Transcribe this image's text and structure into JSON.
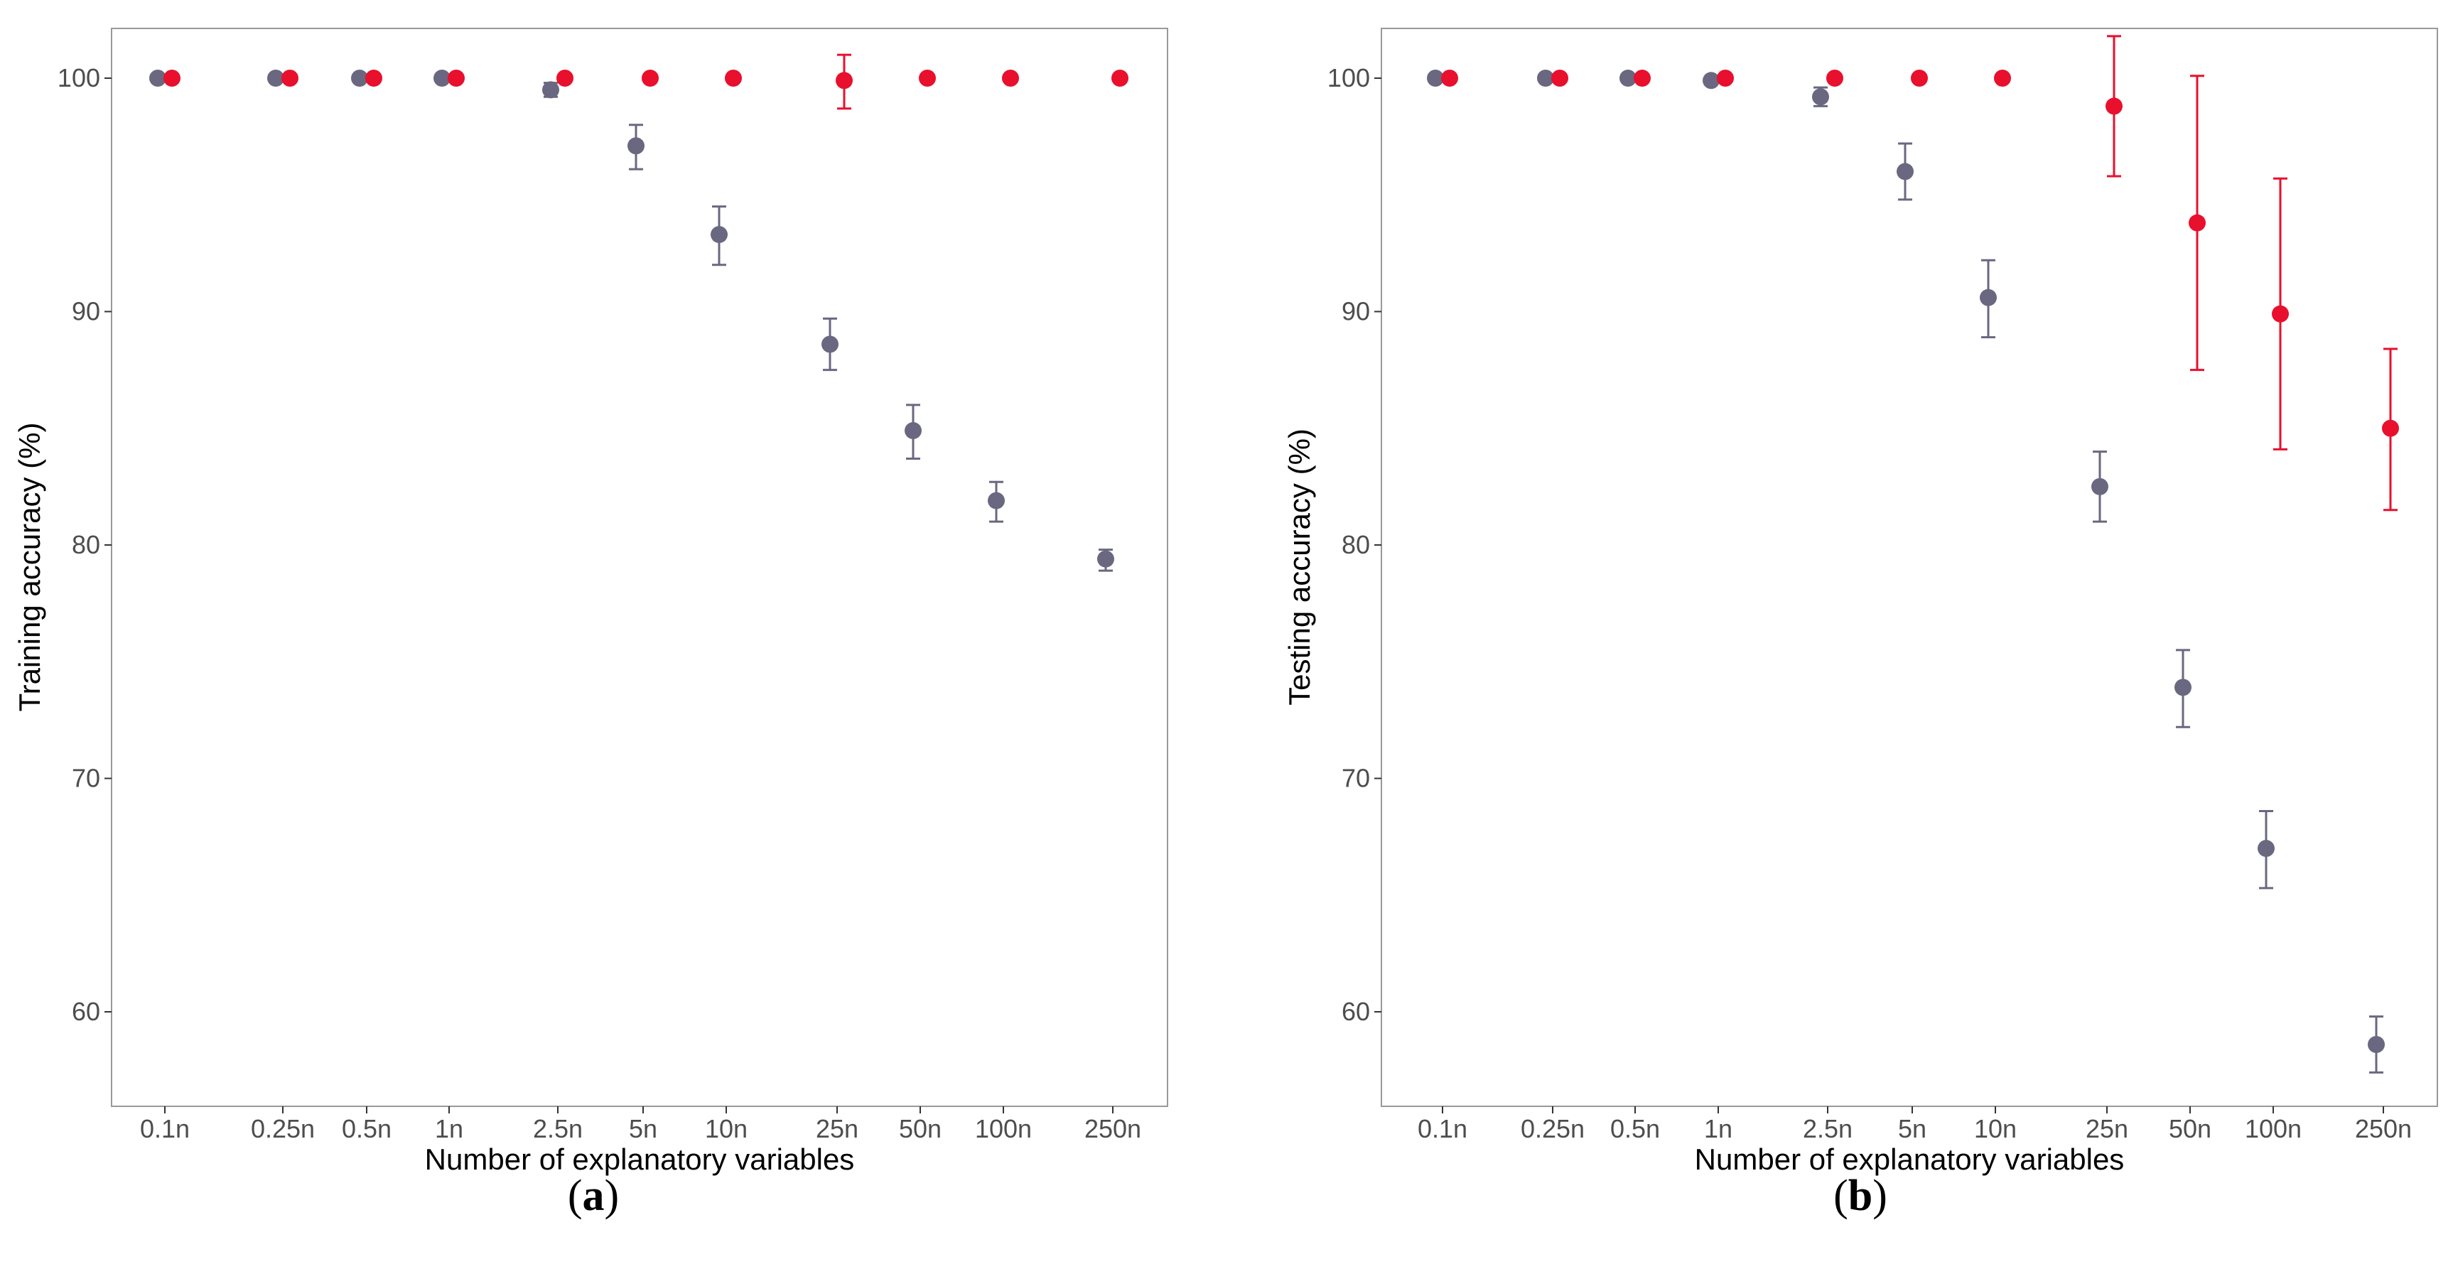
{
  "colors": {
    "series_a": "#6a6780",
    "series_b": "#e8102d",
    "frame": "#999999",
    "tick_text": "#4d4d4d"
  },
  "x_categories": [
    "0.1n",
    "0.25n",
    "0.5n",
    "1n",
    "2.5n",
    "5n",
    "10n",
    "25n",
    "50n",
    "100n",
    "250n"
  ],
  "chart_data": [
    {
      "type": "scatter",
      "panel": "a",
      "panel_label": {
        "open": "(",
        "letter": "a",
        "close": ")"
      },
      "xlabel": "Number of explanatory variables",
      "ylabel": "Training accuracy (%)",
      "ylim": [
        56,
        102.2
      ],
      "yticks": [
        60,
        70,
        80,
        90,
        100
      ],
      "categories": [
        "0.1n",
        "0.25n",
        "0.5n",
        "1n",
        "2.5n",
        "5n",
        "10n",
        "25n",
        "50n",
        "100n",
        "250n"
      ],
      "series": [
        {
          "name": "gray",
          "color": "#6a6780",
          "values": [
            100,
            100,
            100,
            100,
            99.5,
            97.1,
            93.3,
            88.6,
            84.9,
            81.9,
            79.4
          ],
          "err_low": [
            null,
            null,
            null,
            null,
            99.2,
            96.1,
            92.0,
            87.5,
            83.7,
            81.0,
            78.9
          ],
          "err_high": [
            null,
            null,
            null,
            null,
            99.8,
            98.0,
            94.5,
            89.7,
            86.0,
            82.7,
            79.8
          ]
        },
        {
          "name": "red",
          "color": "#e8102d",
          "values": [
            100,
            100,
            100,
            100,
            100,
            100,
            100,
            99.9,
            100,
            100,
            100
          ],
          "err_low": [
            null,
            null,
            null,
            null,
            null,
            null,
            null,
            98.7,
            null,
            null,
            null
          ],
          "err_high": [
            null,
            null,
            null,
            null,
            null,
            null,
            null,
            101.0,
            null,
            null,
            null
          ]
        }
      ]
    },
    {
      "type": "scatter",
      "panel": "b",
      "panel_label": {
        "open": "(",
        "letter": "b",
        "close": ")"
      },
      "xlabel": "Number of explanatory variables",
      "ylabel": "Testing accuracy (%)",
      "ylim": [
        56,
        102.2
      ],
      "yticks": [
        60,
        70,
        80,
        90,
        100
      ],
      "categories": [
        "0.1n",
        "0.25n",
        "0.5n",
        "1n",
        "2.5n",
        "5n",
        "10n",
        "25n",
        "50n",
        "100n",
        "250n"
      ],
      "series": [
        {
          "name": "gray",
          "color": "#6a6780",
          "values": [
            100,
            100,
            100,
            99.9,
            99.2,
            96.0,
            90.6,
            82.5,
            73.9,
            67.0,
            58.6
          ],
          "err_low": [
            null,
            null,
            null,
            null,
            98.8,
            94.8,
            88.9,
            81.0,
            72.2,
            65.3,
            57.4
          ],
          "err_high": [
            null,
            null,
            null,
            null,
            99.6,
            97.2,
            92.2,
            84.0,
            75.5,
            68.6,
            59.8
          ]
        },
        {
          "name": "red",
          "color": "#e8102d",
          "values": [
            100,
            100,
            100,
            100,
            100,
            100,
            100,
            98.8,
            93.8,
            89.9,
            85.0
          ],
          "err_low": [
            null,
            null,
            null,
            null,
            null,
            null,
            null,
            95.8,
            87.5,
            84.1,
            81.5
          ],
          "err_high": [
            null,
            null,
            null,
            null,
            null,
            null,
            null,
            101.8,
            100.1,
            95.7,
            88.4
          ]
        }
      ]
    }
  ]
}
